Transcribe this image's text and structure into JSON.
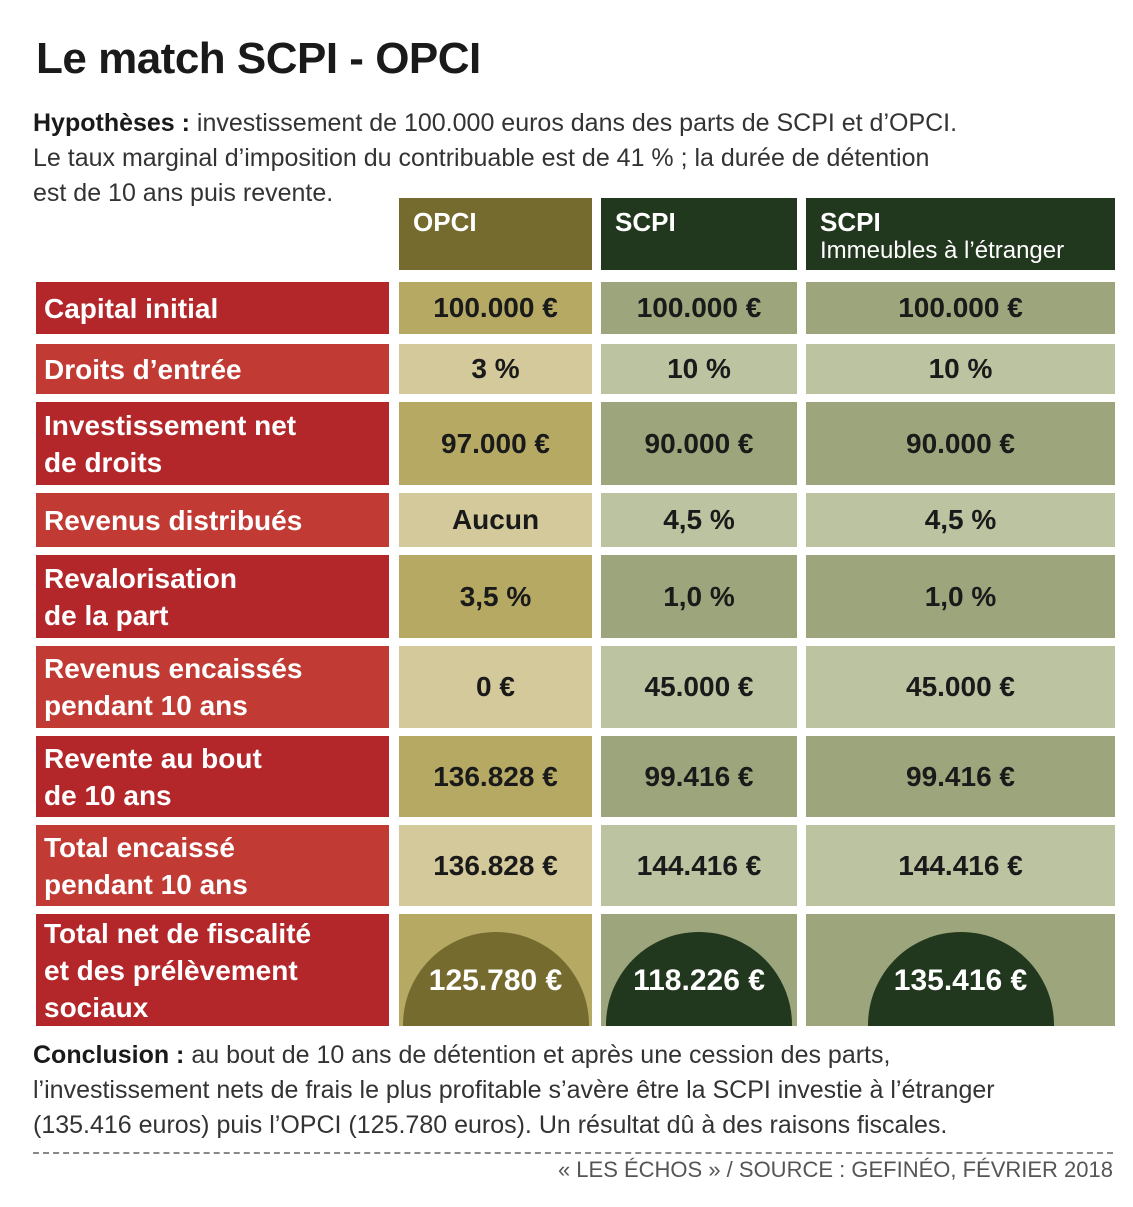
{
  "title": "Le match SCPI - OPCI",
  "hypotheses": {
    "lead": "Hypothèses :",
    "line1": " investissement de 100.000 euros dans des parts de SCPI et d’OPCI.",
    "line2": "Le taux marginal d’imposition du contribuable est de 41 % ; la durée de détention",
    "line3": "est de 10 ans puis revente."
  },
  "columns": [
    {
      "name": "OPCI",
      "subtitle": ""
    },
    {
      "name": "SCPI",
      "subtitle": ""
    },
    {
      "name": "SCPI",
      "subtitle": "Immeubles à l’étranger"
    }
  ],
  "rows": [
    {
      "label": [
        "Capital initial"
      ],
      "values": [
        "100.000 €",
        "100.000 €",
        "100.000 €"
      ]
    },
    {
      "label": [
        "Droits d’entrée"
      ],
      "values": [
        "3 %",
        "10 %",
        "10 %"
      ]
    },
    {
      "label": [
        "Investissement net",
        "de droits"
      ],
      "values": [
        "97.000 €",
        "90.000 €",
        "90.000 €"
      ]
    },
    {
      "label": [
        "Revenus distribués"
      ],
      "values": [
        "Aucun",
        "4,5 %",
        "4,5 %"
      ]
    },
    {
      "label": [
        "Revalorisation",
        "de la part"
      ],
      "values": [
        "3,5 %",
        "1,0 %",
        "1,0 %"
      ]
    },
    {
      "label": [
        "Revenus encaissés",
        "pendant 10 ans"
      ],
      "values": [
        "0 €",
        "45.000 €",
        "45.000 €"
      ]
    },
    {
      "label": [
        "Revente au bout",
        "de 10 ans"
      ],
      "values": [
        "136.828 €",
        "99.416 €",
        "99.416 €"
      ]
    },
    {
      "label": [
        "Total encaissé",
        "pendant 10 ans"
      ],
      "values": [
        "136.828 €",
        "144.416 €",
        "144.416 €"
      ]
    },
    {
      "label": [
        "Total net de fiscalité",
        "et des prélèvement",
        "sociaux"
      ],
      "values": [
        "125.780 €",
        "118.226 €",
        "135.416 €"
      ]
    }
  ],
  "conclusion": {
    "lead": "Conclusion :",
    "line1": " au bout de 10 ans de détention et après une cession des parts,",
    "line2": "l’investissement nets de frais le plus profitable s’avère être la SCPI investie à l’étranger",
    "line3": "(135.416 euros) puis l’OPCI (125.780 euros). Un résultat dû à des raisons fiscales."
  },
  "source": "« LES ÉCHOS » / SOURCE : GEFINÉO, FÉVRIER 2018",
  "colors": {
    "label_dark": "#b3262a",
    "label_light": "#c13a33",
    "opci_header": "#766b2e",
    "scpi_header": "#22381e",
    "opci_dark": "#b5a964",
    "opci_light": "#d3c99a",
    "scpi_dark": "#9ca57b",
    "scpi_light": "#bcc3a1",
    "opci_dome": "#766b2e",
    "scpi_dome": "#22381e"
  }
}
